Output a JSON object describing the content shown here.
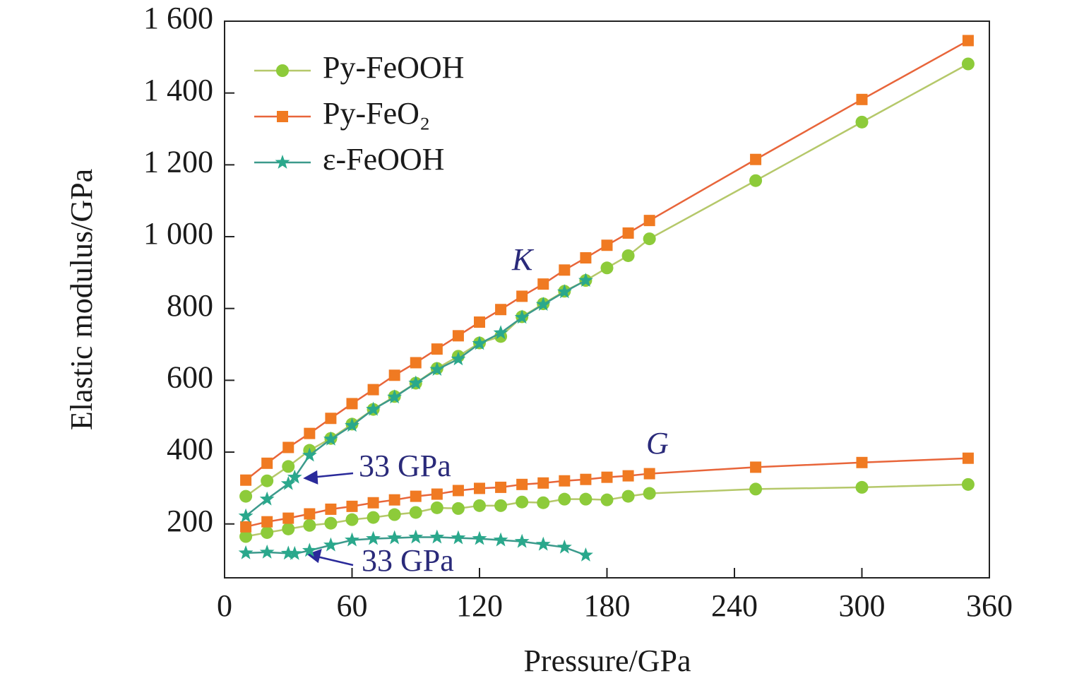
{
  "chart_data": {
    "type": "line",
    "x_label": "Pressure/GPa",
    "y_label": "Elastic modulus/GPa",
    "xlim": [
      0,
      360
    ],
    "xticks": [
      0,
      60,
      120,
      180,
      240,
      300,
      360
    ],
    "ylim": [
      50,
      1600
    ],
    "yticks": [
      200,
      400,
      600,
      800,
      {
        "value": 1000,
        "label": "1 000"
      },
      {
        "value": 1200,
        "label": "1 200"
      },
      {
        "value": 1400,
        "label": "1 400"
      },
      {
        "value": 1600,
        "label": "1 600"
      }
    ],
    "legend": "upper left",
    "annotations": [
      "K",
      "G",
      "33 GPa",
      "33 GPa"
    ],
    "series": [
      {
        "name": "Py-FeOOH",
        "color": "#8dcb3a",
        "line_color": "#b5c86a",
        "marker": "circle",
        "x": [
          10,
          20,
          30,
          40,
          50,
          60,
          70,
          80,
          90,
          100,
          110,
          120,
          130,
          140,
          150,
          160,
          170,
          180,
          190,
          200,
          250,
          300,
          350
        ],
        "values_k": [
          277,
          320,
          360,
          405,
          438,
          478,
          519,
          555,
          592,
          633,
          667,
          704,
          722,
          777,
          813,
          848,
          878,
          913,
          947,
          994,
          1156,
          1319,
          1481
        ],
        "values_g": [
          165,
          176,
          186,
          196,
          202,
          212,
          218,
          226,
          232,
          245,
          243,
          251,
          251,
          261,
          259,
          269,
          269,
          267,
          277,
          285,
          297,
          302,
          310
        ]
      },
      {
        "name": "Py-FeO₂",
        "color": "#f07a22",
        "line_color": "#e8653a",
        "marker": "square",
        "x": [
          10,
          20,
          30,
          40,
          50,
          60,
          70,
          80,
          90,
          100,
          110,
          120,
          130,
          140,
          150,
          160,
          170,
          180,
          190,
          200,
          250,
          300,
          350
        ],
        "values_k": [
          322,
          369,
          413,
          452,
          494,
          535,
          574,
          614,
          649,
          687,
          724,
          762,
          797,
          834,
          868,
          907,
          941,
          976,
          1010,
          1045,
          1215,
          1382,
          1546
        ],
        "values_g": [
          192,
          206,
          216,
          228,
          241,
          249,
          259,
          267,
          277,
          283,
          293,
          299,
          302,
          310,
          314,
          320,
          324,
          330,
          334,
          340,
          358,
          371,
          383
        ]
      },
      {
        "name": "ε-FeOOH",
        "color": "#2aa88c",
        "line_color": "#3c9a8c",
        "marker": "star",
        "x": [
          10,
          20,
          30,
          33,
          40,
          50,
          60,
          70,
          80,
          90,
          100,
          110,
          120,
          130,
          140,
          150,
          160,
          170
        ],
        "values_k": [
          222,
          269,
          312,
          330,
          391,
          436,
          474,
          519,
          553,
          592,
          630,
          659,
          702,
          732,
          775,
          811,
          846,
          878
        ],
        "values_g": [
          119,
          121,
          118,
          117,
          126,
          141,
          155,
          159,
          161,
          163,
          163,
          161,
          159,
          155,
          151,
          143,
          135,
          113
        ]
      }
    ]
  }
}
